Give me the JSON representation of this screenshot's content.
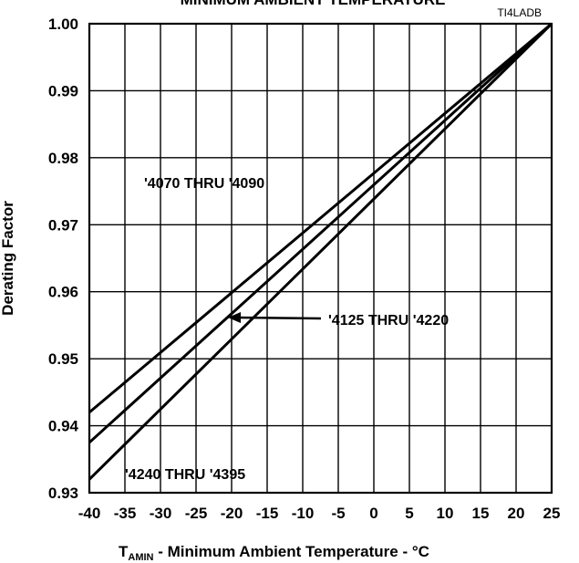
{
  "chart_data": {
    "type": "line",
    "title": "MINIMUM AMBIENT TEMPERATURE",
    "code": "TI4LADB",
    "xlabel_main": "T",
    "xlabel_sub": "AMIN",
    "xlabel_rest": " - Minimum Ambient Temperature - °C",
    "ylabel": "Derating Factor",
    "xlim": [
      -40,
      25
    ],
    "ylim": [
      0.93,
      1.0
    ],
    "x_ticks": [
      "-40",
      "-35",
      "-30",
      "-25",
      "-20",
      "-15",
      "-10",
      "-5",
      "0",
      "5",
      "10",
      "15",
      "20",
      "25"
    ],
    "x_tick_values": [
      -40,
      -35,
      -30,
      -25,
      -20,
      -15,
      -10,
      -5,
      0,
      5,
      10,
      15,
      20,
      25
    ],
    "y_ticks": [
      "0.93",
      "0.94",
      "0.95",
      "0.96",
      "0.97",
      "0.98",
      "0.99",
      "1.00"
    ],
    "y_tick_values": [
      0.93,
      0.94,
      0.95,
      0.96,
      0.97,
      0.98,
      0.99,
      1.0
    ],
    "grid": true,
    "series": [
      {
        "name": "'4070 THRU '4090",
        "x": [
          -40,
          25
        ],
        "values": [
          0.942,
          1.0
        ]
      },
      {
        "name": "'4125 THRU '4220",
        "x": [
          -40,
          25
        ],
        "values": [
          0.9375,
          1.0
        ]
      },
      {
        "name": "'4240 THRU '4395",
        "x": [
          -40,
          25
        ],
        "values": [
          0.932,
          1.0
        ]
      }
    ],
    "annotations": [
      {
        "text": "'4070 THRU '4090"
      },
      {
        "text": "'4125 THRU '4220"
      },
      {
        "text": "'4240 THRU '4395"
      }
    ]
  }
}
